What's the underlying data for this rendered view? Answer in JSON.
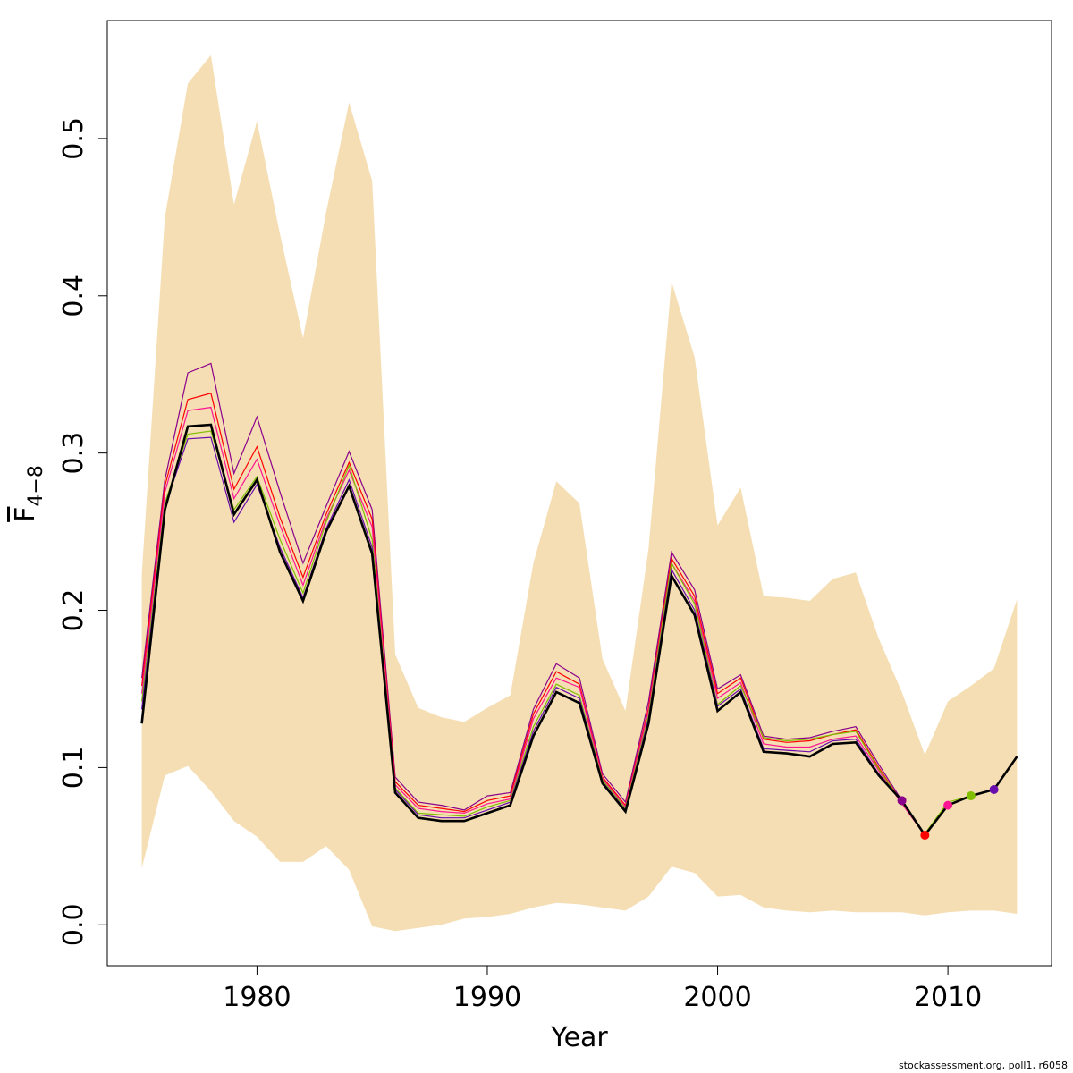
{
  "chart_data": {
    "type": "line",
    "xlabel": "Year",
    "ylabel_main": "F",
    "ylabel_sub": "4−8",
    "xlim": [
      1973.5,
      2014.5
    ],
    "ylim": [
      -0.026,
      0.575
    ],
    "x_ticks": [
      1980,
      1990,
      2000,
      2010
    ],
    "y_ticks": [
      0.0,
      0.1,
      0.2,
      0.3,
      0.4,
      0.5
    ],
    "y_tick_labels": [
      "0.0",
      "0.1",
      "0.2",
      "0.3",
      "0.4",
      "0.5"
    ],
    "grid": false,
    "colors": {
      "band": "#f5deb3",
      "main_line": "#000000",
      "series": [
        "#8b008b",
        "#ff0000",
        "#ff1493",
        "#7fbf00",
        "#6a0dad"
      ]
    },
    "confidence_band": {
      "years": [
        1975,
        1976,
        1977,
        1978,
        1979,
        1980,
        1981,
        1982,
        1983,
        1984,
        1985,
        1986,
        1987,
        1988,
        1989,
        1990,
        1991,
        1992,
        1993,
        1994,
        1995,
        1996,
        1997,
        1998,
        1999,
        2000,
        2001,
        2002,
        2003,
        2004,
        2005,
        2006,
        2007,
        2008,
        2009,
        2010,
        2011,
        2012,
        2013
      ],
      "upper": [
        0.223,
        0.45,
        0.535,
        0.553,
        0.458,
        0.511,
        0.439,
        0.373,
        0.453,
        0.523,
        0.473,
        0.172,
        0.138,
        0.132,
        0.129,
        0.138,
        0.146,
        0.23,
        0.282,
        0.268,
        0.169,
        0.136,
        0.239,
        0.409,
        0.361,
        0.254,
        0.278,
        0.209,
        0.208,
        0.206,
        0.22,
        0.224,
        0.182,
        0.148,
        0.108,
        0.142,
        0.152,
        0.163,
        0.207
      ],
      "lower": [
        0.036,
        0.095,
        0.101,
        0.085,
        0.066,
        0.056,
        0.04,
        0.04,
        0.05,
        0.035,
        -0.001,
        -0.004,
        -0.002,
        0.0,
        0.004,
        0.005,
        0.007,
        0.011,
        0.014,
        0.013,
        0.011,
        0.009,
        0.018,
        0.037,
        0.033,
        0.018,
        0.019,
        0.011,
        0.009,
        0.008,
        0.009,
        0.008,
        0.008,
        0.008,
        0.006,
        0.008,
        0.009,
        0.009,
        0.007
      ]
    },
    "main_series": {
      "years": [
        1975,
        1976,
        1977,
        1978,
        1979,
        1980,
        1981,
        1982,
        1983,
        1984,
        1985,
        1986,
        1987,
        1988,
        1989,
        1990,
        1991,
        1992,
        1993,
        1994,
        1995,
        1996,
        1997,
        1998,
        1999,
        2000,
        2001,
        2002,
        2003,
        2004,
        2005,
        2006,
        2007,
        2008,
        2009,
        2010,
        2011,
        2012,
        2013
      ],
      "values": [
        0.128,
        0.264,
        0.317,
        0.318,
        0.261,
        0.283,
        0.237,
        0.206,
        0.25,
        0.279,
        0.236,
        0.084,
        0.068,
        0.066,
        0.066,
        0.071,
        0.076,
        0.12,
        0.148,
        0.141,
        0.09,
        0.072,
        0.128,
        0.222,
        0.197,
        0.136,
        0.148,
        0.11,
        0.109,
        0.107,
        0.115,
        0.116,
        0.095,
        0.079,
        0.057,
        0.076,
        0.082,
        0.086,
        0.107
      ]
    },
    "retro_series": [
      {
        "color": "#8b008b",
        "years": [
          1975,
          1976,
          1977,
          1978,
          1979,
          1980,
          1981,
          1982,
          1983,
          1984,
          1985,
          1986,
          1987,
          1988,
          1989,
          1990,
          1991,
          1992,
          1993,
          1994,
          1995,
          1996,
          1997,
          1998,
          1999,
          2000,
          2001,
          2002,
          2003,
          2004,
          2005,
          2006,
          2007,
          2008
        ],
        "values": [
          0.157,
          0.283,
          0.351,
          0.357,
          0.287,
          0.323,
          0.275,
          0.23,
          0.266,
          0.301,
          0.264,
          0.094,
          0.078,
          0.076,
          0.073,
          0.082,
          0.084,
          0.137,
          0.166,
          0.157,
          0.096,
          0.078,
          0.142,
          0.237,
          0.213,
          0.15,
          0.159,
          0.12,
          0.118,
          0.119,
          0.123,
          0.126,
          0.102,
          0.079
        ],
        "end_point": true
      },
      {
        "color": "#ff0000",
        "years": [
          1975,
          1976,
          1977,
          1978,
          1979,
          1980,
          1981,
          1982,
          1983,
          1984,
          1985,
          1986,
          1987,
          1988,
          1989,
          1990,
          1991,
          1992,
          1993,
          1994,
          1995,
          1996,
          1997,
          1998,
          1999,
          2000,
          2001,
          2002,
          2003,
          2004,
          2005,
          2006,
          2007,
          2008,
          2009
        ],
        "values": [
          0.152,
          0.279,
          0.334,
          0.338,
          0.277,
          0.304,
          0.259,
          0.221,
          0.261,
          0.294,
          0.258,
          0.091,
          0.076,
          0.074,
          0.072,
          0.079,
          0.082,
          0.134,
          0.161,
          0.153,
          0.094,
          0.076,
          0.138,
          0.233,
          0.209,
          0.147,
          0.157,
          0.118,
          0.116,
          0.117,
          0.121,
          0.124,
          0.1,
          0.078,
          0.057
        ],
        "end_point": true
      },
      {
        "color": "#ff1493",
        "years": [
          1975,
          1976,
          1977,
          1978,
          1979,
          1980,
          1981,
          1982,
          1983,
          1984,
          1985,
          1986,
          1987,
          1988,
          1989,
          1990,
          1991,
          1992,
          1993,
          1994,
          1995,
          1996,
          1997,
          1998,
          1999,
          2000,
          2001,
          2002,
          2003,
          2004,
          2005,
          2006,
          2007,
          2008,
          2009,
          2010
        ],
        "values": [
          0.147,
          0.275,
          0.327,
          0.329,
          0.271,
          0.296,
          0.254,
          0.216,
          0.258,
          0.289,
          0.253,
          0.089,
          0.074,
          0.072,
          0.071,
          0.077,
          0.08,
          0.131,
          0.157,
          0.151,
          0.093,
          0.075,
          0.136,
          0.23,
          0.206,
          0.144,
          0.154,
          0.115,
          0.113,
          0.113,
          0.118,
          0.12,
          0.098,
          0.077,
          0.057,
          0.076
        ],
        "end_point": true
      },
      {
        "color": "#7fbf00",
        "years": [
          1975,
          1976,
          1977,
          1978,
          1979,
          1980,
          1981,
          1982,
          1983,
          1984,
          1985,
          1986,
          1987,
          1988,
          1989,
          1990,
          1991,
          1992,
          1993,
          1994,
          1995,
          1996,
          1997,
          1998,
          1999,
          2000,
          2001,
          2002,
          2003,
          2004,
          2005,
          2006,
          2007,
          2008,
          2009,
          2010,
          2011
        ],
        "values": [
          0.142,
          0.268,
          0.312,
          0.314,
          0.264,
          0.285,
          0.245,
          0.211,
          0.256,
          0.292,
          0.245,
          0.087,
          0.071,
          0.07,
          0.069,
          0.075,
          0.079,
          0.126,
          0.153,
          0.146,
          0.092,
          0.074,
          0.133,
          0.23,
          0.204,
          0.14,
          0.152,
          0.119,
          0.117,
          0.118,
          0.121,
          0.123,
          0.099,
          0.078,
          0.058,
          0.078,
          0.082
        ],
        "end_point": true
      },
      {
        "color": "#6a0dad",
        "years": [
          1975,
          1976,
          1977,
          1978,
          1979,
          1980,
          1981,
          1982,
          1983,
          1984,
          1985,
          1986,
          1987,
          1988,
          1989,
          1990,
          1991,
          1992,
          1993,
          1994,
          1995,
          1996,
          1997,
          1998,
          1999,
          2000,
          2001,
          2002,
          2003,
          2004,
          2005,
          2006,
          2007,
          2008,
          2009,
          2010,
          2011,
          2012
        ],
        "values": [
          0.137,
          0.266,
          0.309,
          0.31,
          0.256,
          0.28,
          0.24,
          0.208,
          0.252,
          0.283,
          0.24,
          0.086,
          0.07,
          0.068,
          0.068,
          0.073,
          0.078,
          0.123,
          0.151,
          0.144,
          0.091,
          0.073,
          0.131,
          0.226,
          0.2,
          0.139,
          0.15,
          0.112,
          0.111,
          0.11,
          0.117,
          0.118,
          0.096,
          0.079,
          0.057,
          0.076,
          0.082,
          0.086
        ],
        "end_point": true
      }
    ]
  },
  "footer": {
    "credit": "stockassessment.org, poll1, r6058"
  }
}
